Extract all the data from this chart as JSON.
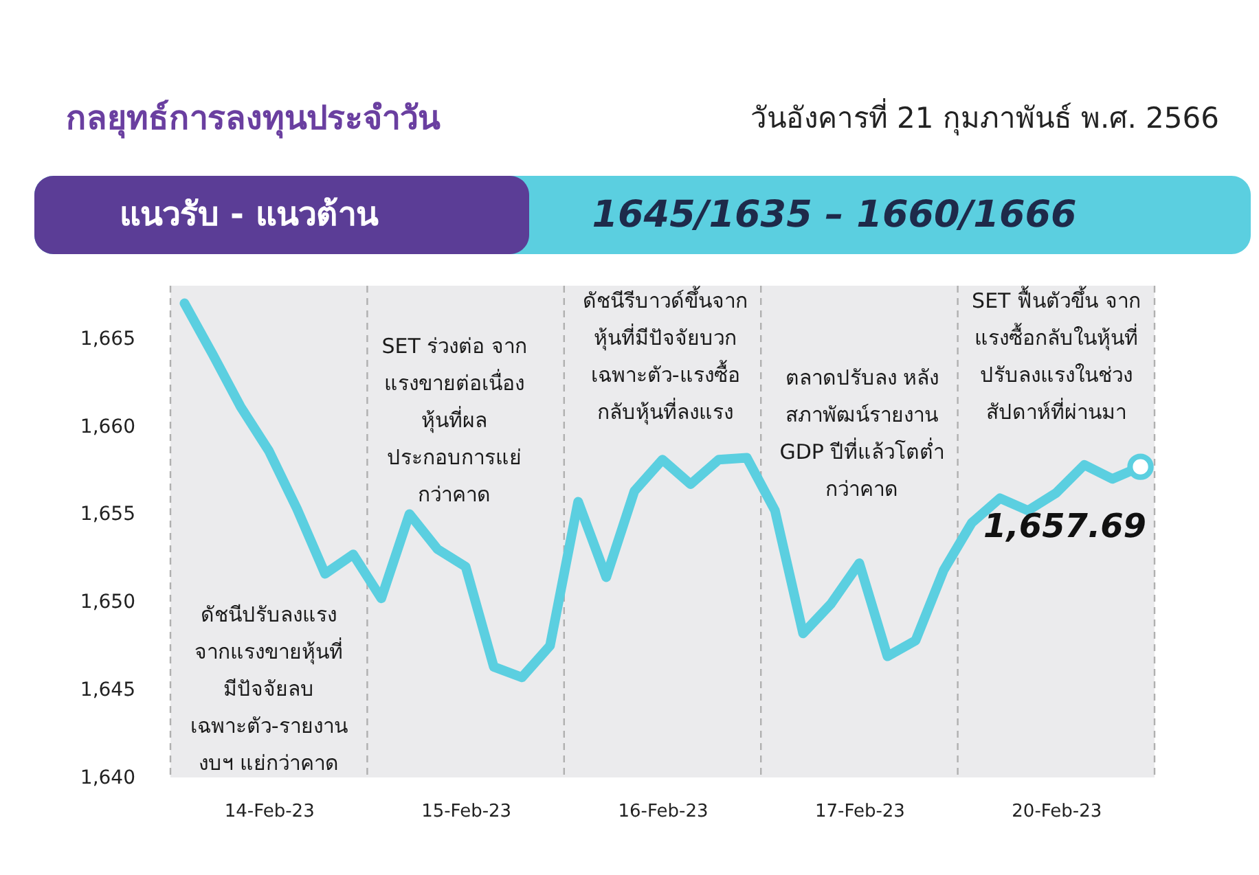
{
  "chart_data": {
    "type": "line",
    "title": "กลยุทธ์การลงทุนประจำวัน",
    "subtitle": "วันอังคารที่ 21 กุมภาพันธ์ พ.ศ. 2566",
    "categories": [
      null,
      null,
      null,
      "14-Feb-23",
      null,
      null,
      null,
      null,
      null,
      null,
      "15-Feb-23",
      null,
      null,
      null,
      null,
      null,
      null,
      "16-Feb-23",
      null,
      null,
      null,
      null,
      null,
      null,
      "17-Feb-23",
      null,
      null,
      null,
      null,
      null,
      null,
      "20-Feb-23",
      null,
      null,
      null
    ],
    "series": [
      {
        "color": "#5bcfe0",
        "values": [
          1667.0,
          1664.1,
          1661.1,
          1658.6,
          1655.3,
          1651.6,
          1652.7,
          1650.2,
          1655.0,
          1653.0,
          1652.0,
          1646.3,
          1645.7,
          1647.5,
          1655.7,
          1651.4,
          1656.3,
          1658.1,
          1656.7,
          1658.1,
          1658.2,
          1655.2,
          1648.2,
          1649.9,
          1652.2,
          1646.9,
          1647.8,
          1651.8,
          1654.5,
          1655.9,
          1655.2,
          1656.2,
          1657.8,
          1657.0,
          1657.69
        ],
        "value_labels": [
          null,
          null,
          null,
          null,
          null,
          null,
          null,
          null,
          null,
          null,
          null,
          null,
          null,
          null,
          null,
          null,
          null,
          null,
          null,
          null,
          null,
          null,
          null,
          null,
          null,
          null,
          null,
          null,
          null,
          null,
          null,
          null,
          null,
          null,
          "1,657.69"
        ]
      }
    ],
    "ylim": [
      1640,
      1668
    ],
    "yticks": [
      {
        "value": 1640,
        "label": "1,640"
      },
      {
        "value": 1645,
        "label": "1,645"
      },
      {
        "value": 1650,
        "label": "1,650"
      },
      {
        "value": 1655,
        "label": "1,655"
      },
      {
        "value": 1660,
        "label": "1,660"
      },
      {
        "value": 1665,
        "label": "1,665"
      }
    ],
    "annotations": [
      "ดัชนีปรับลงแรง\nจากแรงขายหุ้นที่\nมีปัจจัยลบ\nเฉพาะตัว-รายงาน\nงบฯ แย่กว่าคาด",
      "SET  ร่วงต่อ จาก\nแรงขายต่อเนื่อง\nหุ้นที่ผล\nประกอบการแย่\nกว่าคาด",
      "ดัชนีรีบาวด์ขึ้นจาก\nหุ้นที่มีปัจจัยบวก\nเฉพาะตัว-แรงซื้อ\nกลับหุ้นที่ลงแรง",
      "ตลาดปรับลง หลัง\nสภาพัฒน์รายงาน\nGDP ปีที่แล้วโตต่ำ\nกว่าคาด",
      "SET ฟื้นตัวขึ้น จาก\nแรงซื้อกลับในหุ้นที่\nปรับลงแรงในช่วง\nสัปดาห์ที่ผ่านมา",
      "แนวรับ - แนวต้าน",
      "1645/1635 – 1660/1666"
    ],
    "grid": false,
    "legend": false,
    "line_style": "solid"
  }
}
